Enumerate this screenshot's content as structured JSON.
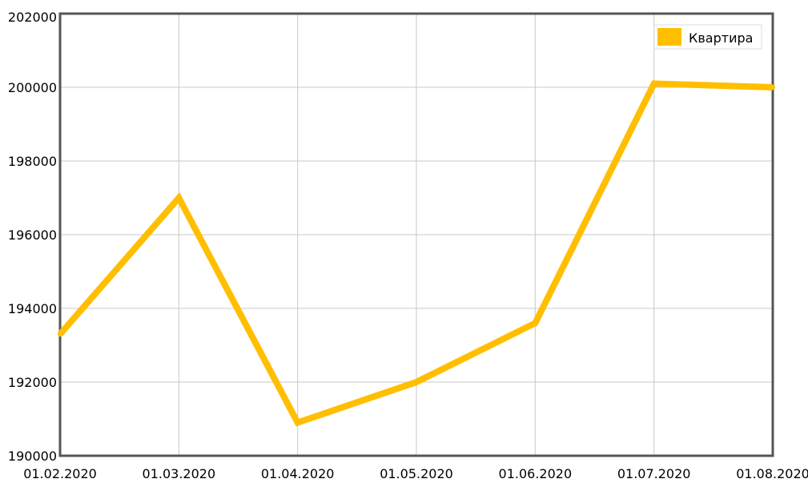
{
  "chart_data": {
    "type": "line",
    "categories": [
      "01.02.2020",
      "01.03.2020",
      "01.04.2020",
      "01.05.2020",
      "01.06.2020",
      "01.07.2020",
      "01.08.2020"
    ],
    "series": [
      {
        "name": "Квартира",
        "values": [
          193300,
          197000,
          190900,
          192000,
          193600,
          200100,
          200000
        ]
      }
    ],
    "ylim": [
      190000,
      202000
    ],
    "yticks": [
      190000,
      192000,
      194000,
      196000,
      198000,
      200000,
      202000
    ],
    "grid": true,
    "legend_position": "top-right",
    "colors": {
      "series": "#ffbf00",
      "frame": "#555555",
      "grid": "#c8c8c8"
    }
  }
}
